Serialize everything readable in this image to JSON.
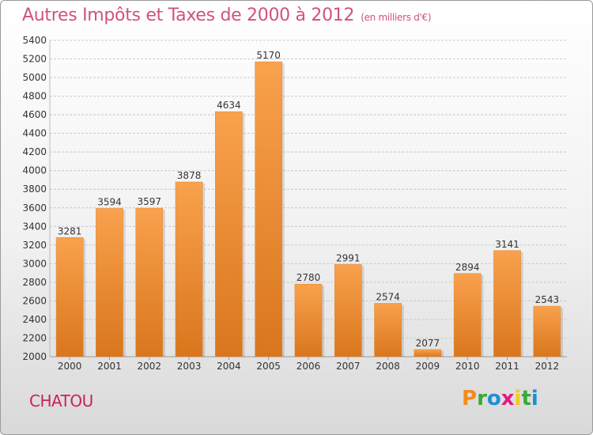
{
  "title": "Autres Impôts et Taxes de 2000 à 2012",
  "subtitle": "(en milliers d'€)",
  "city": "CHATOU",
  "logo": {
    "letters": [
      "P",
      "r",
      "o",
      "x",
      "i",
      "t",
      "i"
    ],
    "colors": [
      "#f28c1e",
      "#3aa935",
      "#1d8ed6",
      "#e3197c",
      "#f6c81c",
      "#3aa935",
      "#1d8ed6"
    ]
  },
  "colors": {
    "bar_light": "#f9a14d",
    "bar_dark": "#d9761d",
    "title": "#d1527b",
    "city": "#c8245a"
  },
  "chart_data": {
    "type": "bar",
    "categories": [
      "2000",
      "2001",
      "2002",
      "2003",
      "2004",
      "2005",
      "2006",
      "2007",
      "2008",
      "2009",
      "2010",
      "2011",
      "2012"
    ],
    "values": [
      3281,
      3594,
      3597,
      3878,
      4634,
      5170,
      2780,
      2991,
      2574,
      2077,
      2894,
      3141,
      2543
    ],
    "ylim": [
      2000,
      5400
    ],
    "ytick_step": 200,
    "grid": true
  }
}
